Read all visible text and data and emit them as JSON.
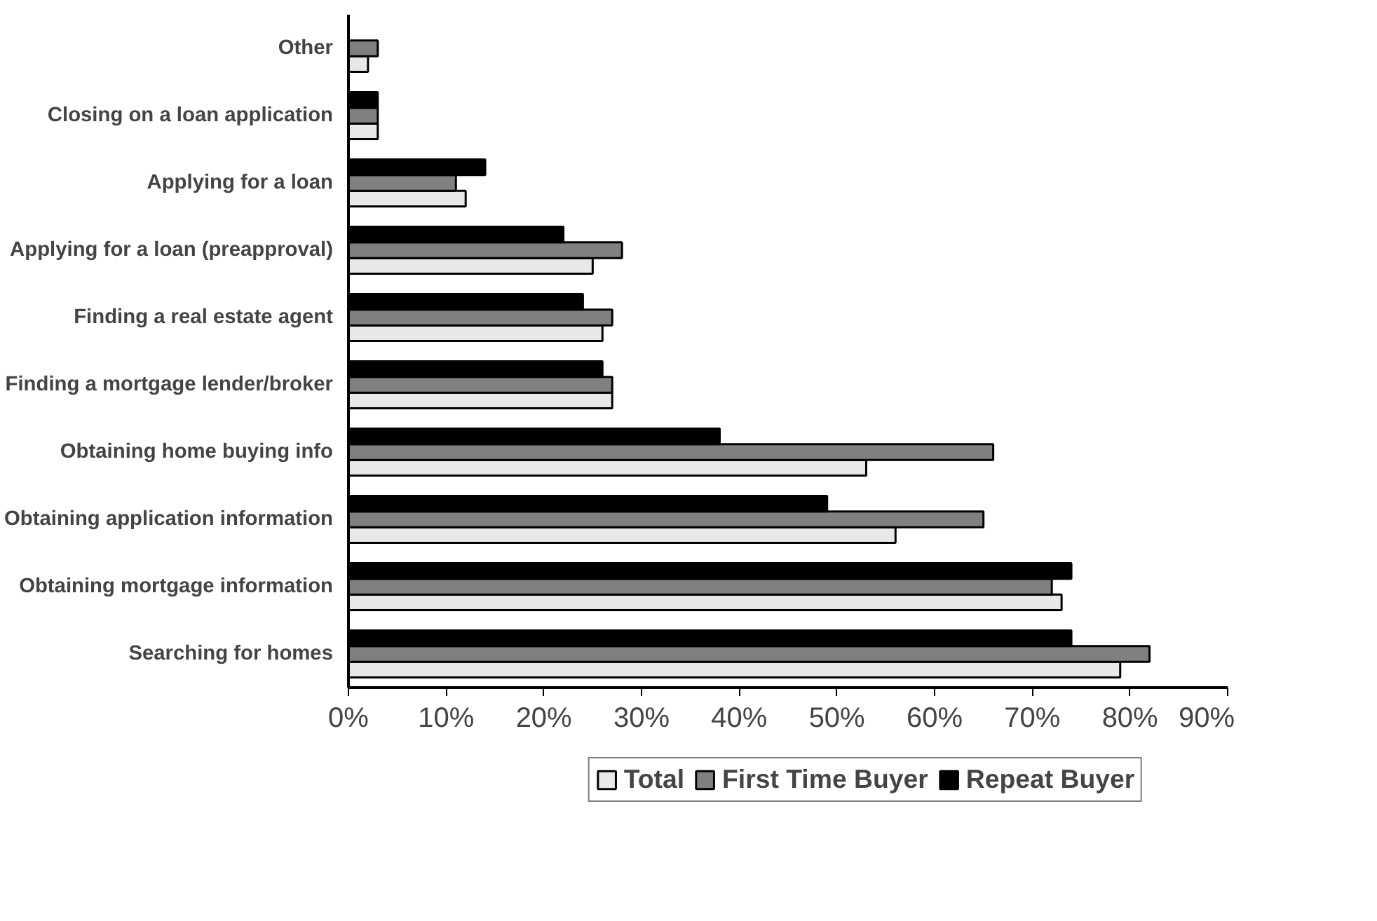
{
  "chart_data": {
    "type": "bar",
    "orientation": "horizontal",
    "categories": [
      "Other",
      "Closing on a loan application",
      "Applying for a loan",
      "Applying for a loan (preapproval)",
      "Finding a real estate agent",
      "Finding a mortgage lender/broker",
      "Obtaining home buying info",
      "Obtaining application information",
      "Obtaining mortgage information",
      "Searching for homes"
    ],
    "series": [
      {
        "name": "Total",
        "color": "#e8e8e8",
        "values": [
          2,
          3,
          12,
          25,
          26,
          27,
          53,
          56,
          73,
          79
        ]
      },
      {
        "name": "First Time Buyer",
        "color": "#808080",
        "values": [
          3,
          3,
          11,
          28,
          27,
          27,
          66,
          65,
          72,
          82
        ]
      },
      {
        "name": "Repeat Buyer",
        "color": "#000000",
        "values": [
          null,
          3,
          14,
          22,
          24,
          26,
          38,
          49,
          74,
          74
        ]
      }
    ],
    "xlim": [
      0,
      90
    ],
    "xticks": [
      {
        "value": 0,
        "label": "0%"
      },
      {
        "value": 10,
        "label": "10%"
      },
      {
        "value": 20,
        "label": "20%"
      },
      {
        "value": 30,
        "label": "30%"
      },
      {
        "value": 40,
        "label": "40%"
      },
      {
        "value": 50,
        "label": "50%"
      },
      {
        "value": 60,
        "label": "60%"
      },
      {
        "value": 70,
        "label": "70%"
      },
      {
        "value": 80,
        "label": "80%"
      },
      {
        "value": 90,
        "label": "90%"
      }
    ],
    "grid": false,
    "legend": "bottom"
  }
}
